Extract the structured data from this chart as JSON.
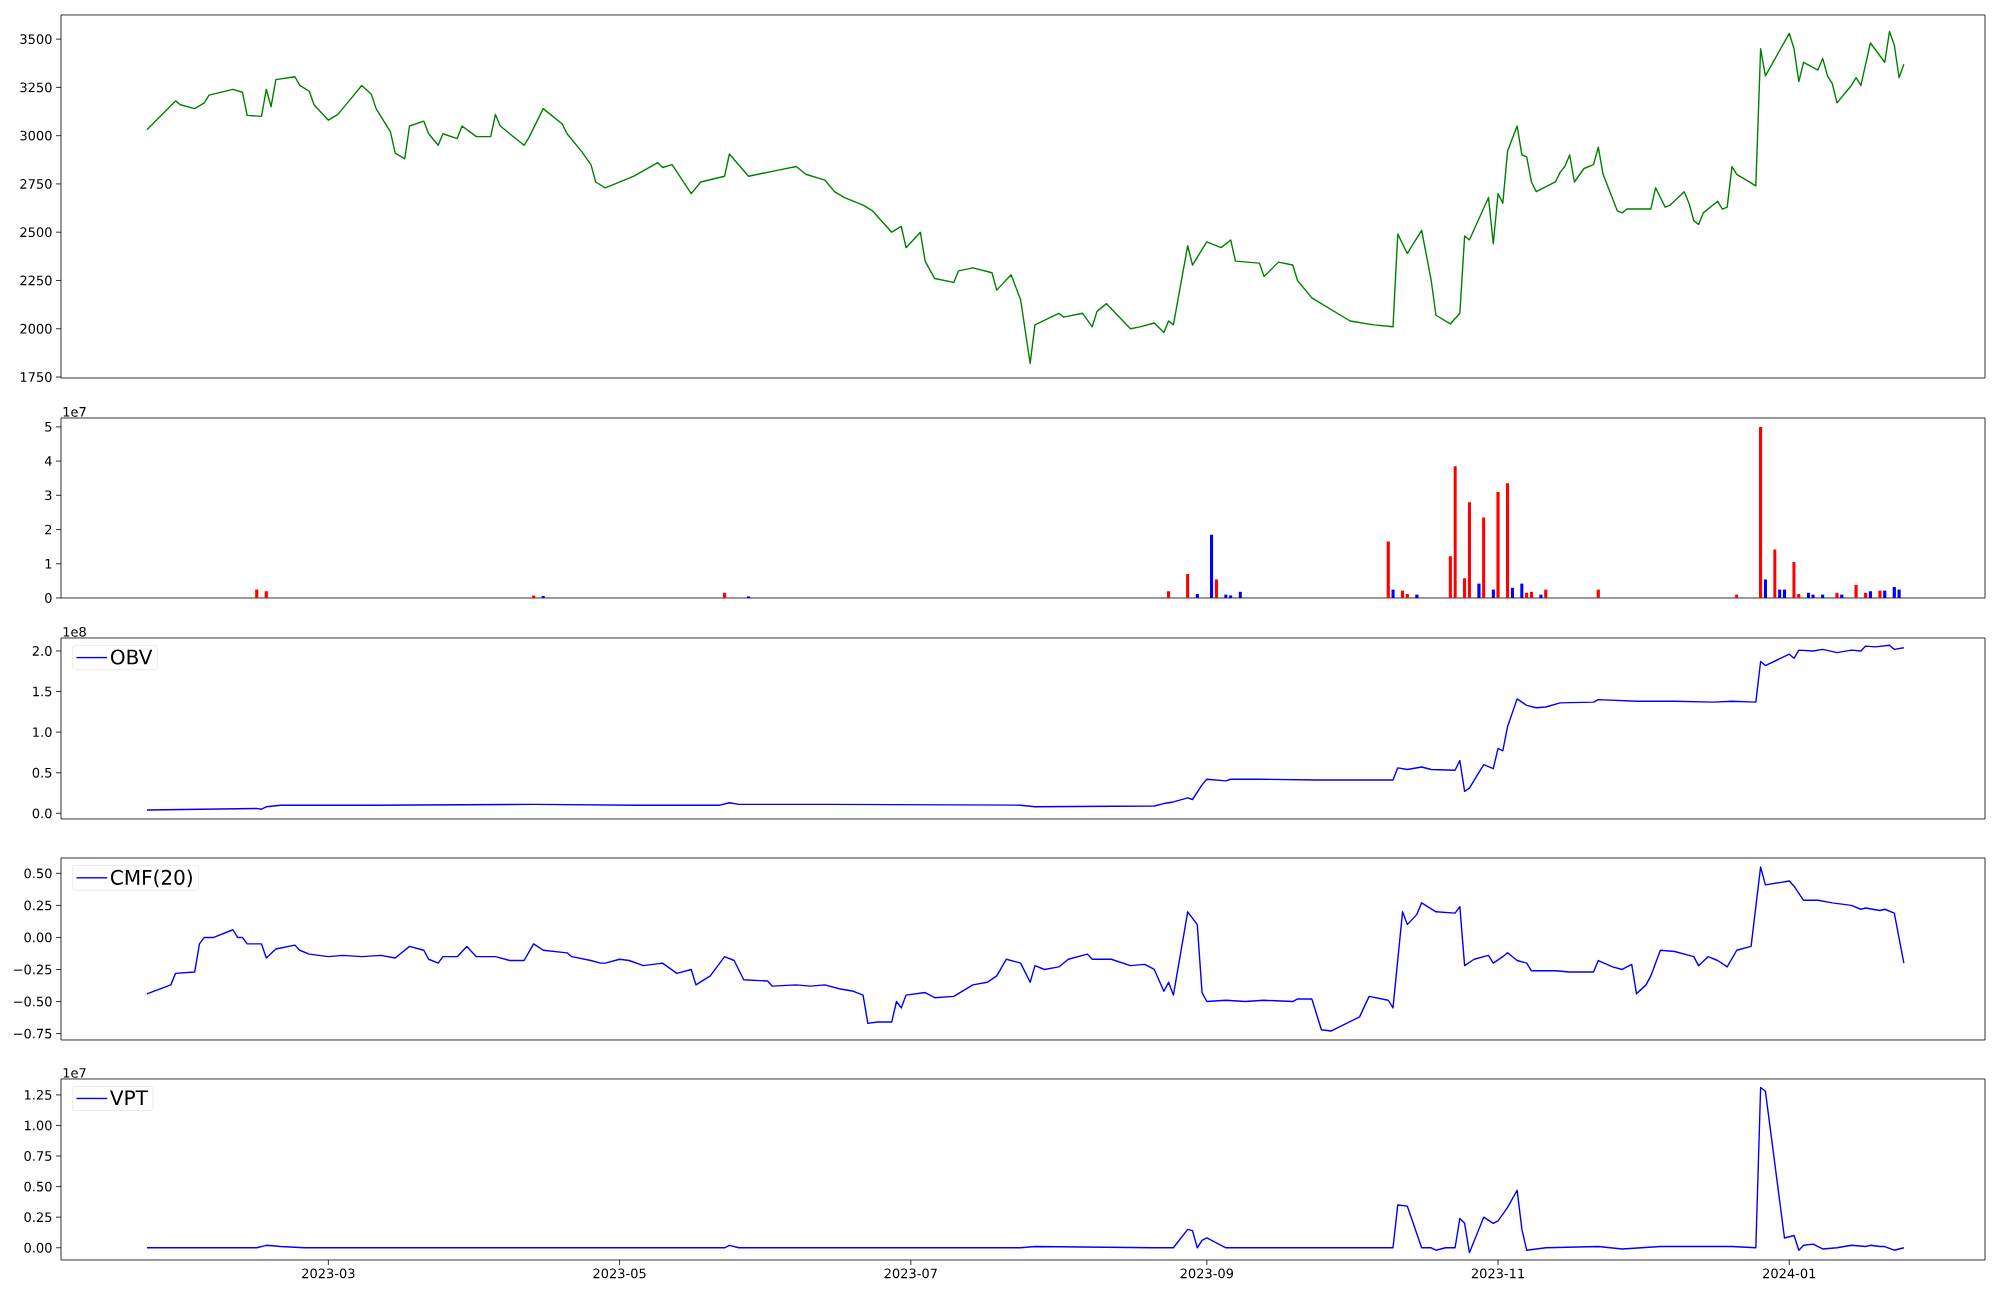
{
  "chart_data": [
    {
      "type": "line",
      "xlim": [
        "2023-01-04",
        "2024-02-11"
      ],
      "ylim": [
        1745,
        3625
      ],
      "yticks": [
        1750,
        2000,
        2250,
        2500,
        2750,
        3000,
        3250,
        3500
      ],
      "tick_labels": "y",
      "series": [
        {
          "color": "#008000",
          "x": [
            "2023-01-22",
            "2023-01-28",
            "2023-01-29",
            "2023-02-01",
            "2023-02-03",
            "2023-02-04",
            "2023-02-09",
            "2023-02-11",
            "2023-02-12",
            "2023-02-15",
            "2023-02-16",
            "2023-02-17",
            "2023-02-18",
            "2023-02-22",
            "2023-02-23",
            "2023-02-25",
            "2023-02-26",
            "2023-03-01",
            "2023-03-03",
            "2023-03-05",
            "2023-03-08",
            "2023-03-10",
            "2023-03-11",
            "2023-03-14",
            "2023-03-15",
            "2023-03-17",
            "2023-03-18",
            "2023-03-21",
            "2023-03-22",
            "2023-03-24",
            "2023-03-25",
            "2023-03-28",
            "2023-03-29",
            "2023-04-01",
            "2023-04-04",
            "2023-04-05",
            "2023-04-06",
            "2023-04-11",
            "2023-04-12",
            "2023-04-15",
            "2023-04-19",
            "2023-04-20",
            "2023-04-23",
            "2023-04-25",
            "2023-04-26",
            "2023-04-28",
            "2023-05-04",
            "2023-05-09",
            "2023-05-10",
            "2023-05-12",
            "2023-05-16",
            "2023-05-18",
            "2023-05-23",
            "2023-05-24",
            "2023-05-28",
            "2023-06-03",
            "2023-06-07",
            "2023-06-09",
            "2023-06-13",
            "2023-06-15",
            "2023-06-17",
            "2023-06-21",
            "2023-06-23",
            "2023-06-27",
            "2023-06-29",
            "2023-06-30",
            "2023-07-03",
            "2023-07-04",
            "2023-07-06",
            "2023-07-10",
            "2023-07-11",
            "2023-07-14",
            "2023-07-18",
            "2023-07-19",
            "2023-07-22",
            "2023-07-24",
            "2023-07-26",
            "2023-07-27",
            "2023-08-01",
            "2023-08-02",
            "2023-08-06",
            "2023-08-08",
            "2023-08-09",
            "2023-08-11",
            "2023-08-16",
            "2023-08-18",
            "2023-08-21",
            "2023-08-23",
            "2023-08-24",
            "2023-08-25",
            "2023-08-28",
            "2023-08-29",
            "2023-09-01",
            "2023-09-04",
            "2023-09-06",
            "2023-09-07",
            "2023-09-12",
            "2023-09-13",
            "2023-09-16",
            "2023-09-19",
            "2023-09-20",
            "2023-09-23",
            "2023-10-01",
            "2023-10-06",
            "2023-10-10",
            "2023-10-11",
            "2023-10-13",
            "2023-10-16",
            "2023-10-18",
            "2023-10-19",
            "2023-10-22",
            "2023-10-24",
            "2023-10-25",
            "2023-10-26",
            "2023-10-30",
            "2023-10-31",
            "2023-11-01",
            "2023-11-02",
            "2023-11-03",
            "2023-11-05",
            "2023-11-06",
            "2023-11-07",
            "2023-11-08",
            "2023-11-09",
            "2023-11-13",
            "2023-11-14",
            "2023-11-15",
            "2023-11-16",
            "2023-11-17",
            "2023-11-19",
            "2023-11-21",
            "2023-11-22",
            "2023-11-23",
            "2023-11-26",
            "2023-11-27",
            "2023-11-28",
            "2023-12-03",
            "2023-12-04",
            "2023-12-06",
            "2023-12-07",
            "2023-12-10",
            "2023-12-11",
            "2023-12-12",
            "2023-12-13",
            "2023-12-14",
            "2023-12-17",
            "2023-12-18",
            "2023-12-19",
            "2023-12-20",
            "2023-12-21",
            "2023-12-25",
            "2023-12-26",
            "2023-12-27",
            "2024-01-01",
            "2024-01-02",
            "2024-01-03",
            "2024-01-04",
            "2024-01-07",
            "2024-01-08",
            "2024-01-09",
            "2024-01-10",
            "2024-01-11",
            "2024-01-14",
            "2024-01-15",
            "2024-01-16",
            "2024-01-18",
            "2024-01-21",
            "2024-01-22",
            "2024-01-23",
            "2024-01-24",
            "2024-01-25"
          ],
          "values": [
            3030,
            3180,
            3160,
            3140,
            3170,
            3210,
            3240,
            3225,
            3105,
            3100,
            3240,
            3150,
            3290,
            3305,
            3260,
            3230,
            3160,
            3080,
            3110,
            3170,
            3260,
            3215,
            3140,
            3020,
            2910,
            2880,
            3050,
            3075,
            3010,
            2950,
            3010,
            2985,
            3050,
            2995,
            2995,
            3110,
            3050,
            2950,
            2990,
            3140,
            3060,
            3010,
            2920,
            2850,
            2760,
            2730,
            2790,
            2860,
            2835,
            2850,
            2700,
            2760,
            2790,
            2905,
            2790,
            2820,
            2840,
            2800,
            2770,
            2710,
            2680,
            2640,
            2610,
            2500,
            2530,
            2420,
            2500,
            2350,
            2260,
            2240,
            2300,
            2315,
            2290,
            2200,
            2280,
            2150,
            1820,
            2020,
            2080,
            2060,
            2080,
            2010,
            2090,
            2130,
            2000,
            2010,
            2030,
            1980,
            2040,
            2020,
            2430,
            2330,
            2450,
            2420,
            2460,
            2350,
            2340,
            2270,
            2345,
            2330,
            2250,
            2160,
            2040,
            2020,
            2010,
            2490,
            2390,
            2510,
            2250,
            2070,
            2025,
            2080,
            2480,
            2460,
            2680,
            2440,
            2700,
            2650,
            2920,
            3050,
            2900,
            2890,
            2760,
            2710,
            2760,
            2810,
            2840,
            2900,
            2760,
            2830,
            2850,
            2940,
            2800,
            2610,
            2600,
            2620,
            2620,
            2730,
            2630,
            2640,
            2710,
            2650,
            2560,
            2540,
            2600,
            2660,
            2620,
            2630,
            2840,
            2800,
            2740,
            3450,
            3310,
            3530,
            3450,
            3280,
            3380,
            3340,
            3400,
            3310,
            3270,
            3170,
            3260,
            3300,
            3260,
            3480,
            3380,
            3540,
            3470,
            3300,
            3370
          ]
        }
      ]
    },
    {
      "type": "bar",
      "xlim": [
        "2023-01-04",
        "2024-02-11"
      ],
      "ylim": [
        0,
        5.26
      ],
      "tick_labels": "y",
      "annotations": [
        "1e7"
      ],
      "yticks": [
        0,
        1,
        2,
        3,
        4,
        5
      ],
      "x": [
        "2023-02-14",
        "2023-02-16",
        "2023-04-13",
        "2023-04-15",
        "2023-05-23",
        "2023-05-28",
        "2023-08-24",
        "2023-08-28",
        "2023-08-30",
        "2023-09-02",
        "2023-09-03",
        "2023-09-05",
        "2023-09-06",
        "2023-09-08",
        "2023-10-09",
        "2023-10-10",
        "2023-10-12",
        "2023-10-13",
        "2023-10-15",
        "2023-10-22",
        "2023-10-23",
        "2023-10-25",
        "2023-10-26",
        "2023-10-28",
        "2023-10-29",
        "2023-10-31",
        "2023-11-01",
        "2023-11-03",
        "2023-11-04",
        "2023-11-06",
        "2023-11-07",
        "2023-11-08",
        "2023-11-10",
        "2023-11-11",
        "2023-11-22",
        "2023-12-21",
        "2023-12-26",
        "2023-12-27",
        "2023-12-29",
        "2023-12-30",
        "2023-12-31",
        "2024-01-02",
        "2024-01-03",
        "2024-01-05",
        "2024-01-06",
        "2024-01-08",
        "2024-01-11",
        "2024-01-12",
        "2024-01-15",
        "2024-01-17",
        "2024-01-18",
        "2024-01-20",
        "2024-01-21",
        "2024-01-23",
        "2024-01-24"
      ],
      "values": [
        0.25,
        0.2,
        0.07,
        0.06,
        0.15,
        0.05,
        0.2,
        0.7,
        0.12,
        1.85,
        0.55,
        0.1,
        0.08,
        0.18,
        1.65,
        0.25,
        0.22,
        0.12,
        0.1,
        1.22,
        3.85,
        0.58,
        2.8,
        0.42,
        2.35,
        0.25,
        3.1,
        3.35,
        0.3,
        0.42,
        0.15,
        0.18,
        0.1,
        0.25,
        0.25,
        0.1,
        5.0,
        0.55,
        1.42,
        0.25,
        0.25,
        1.05,
        0.12,
        0.15,
        0.1,
        0.1,
        0.15,
        0.1,
        0.38,
        0.15,
        0.2,
        0.22,
        0.22,
        0.32,
        0.25
      ],
      "colors": [
        "#ff0000",
        "#ff0000",
        "#ff0000",
        "#0000ff",
        "#ff0000",
        "#0000ff",
        "#ff0000",
        "#ff0000",
        "#0000ff",
        "#0000ff",
        "#ff0000",
        "#0000ff",
        "#0000ff",
        "#0000ff",
        "#ff0000",
        "#0000ff",
        "#ff0000",
        "#ff0000",
        "#0000ff",
        "#ff0000",
        "#ff0000",
        "#ff0000",
        "#ff0000",
        "#0000ff",
        "#ff0000",
        "#0000ff",
        "#ff0000",
        "#ff0000",
        "#0000ff",
        "#0000ff",
        "#ff0000",
        "#ff0000",
        "#0000ff",
        "#ff0000",
        "#ff0000",
        "#ff0000",
        "#ff0000",
        "#0000ff",
        "#ff0000",
        "#0000ff",
        "#0000ff",
        "#ff0000",
        "#ff0000",
        "#0000ff",
        "#0000ff",
        "#0000ff",
        "#ff0000",
        "#0000ff",
        "#ff0000",
        "#ff0000",
        "#0000ff",
        "#ff0000",
        "#0000ff",
        "#0000ff",
        "#0000ff"
      ]
    },
    {
      "type": "line",
      "xlim": [
        "2023-01-04",
        "2024-02-11"
      ],
      "ylim": [
        -0.07,
        2.16
      ],
      "tick_labels": "y",
      "legend": "top left",
      "annotations": [
        "1e8"
      ],
      "yticks": [
        {
          "value": 0,
          "label": "0.0"
        },
        {
          "value": 0.5,
          "label": "0.5"
        },
        {
          "value": 1.0,
          "label": "1.0"
        },
        {
          "value": 1.5,
          "label": "1.5"
        },
        {
          "value": 2.0,
          "label": "2.0"
        }
      ],
      "series": [
        {
          "name": "OBV",
          "color": "#0000ff",
          "x": [
            "2023-01-22",
            "2023-02-14",
            "2023-02-15",
            "2023-02-16",
            "2023-02-19",
            "2023-03-10",
            "2023-04-13",
            "2023-05-05",
            "2023-05-22",
            "2023-05-24",
            "2023-05-26",
            "2023-06-14",
            "2023-07-24",
            "2023-07-27",
            "2023-08-21",
            "2023-08-23",
            "2023-08-25",
            "2023-08-28",
            "2023-08-29",
            "2023-08-31",
            "2023-09-01",
            "2023-09-05",
            "2023-09-06",
            "2023-09-12",
            "2023-09-24",
            "2023-10-10",
            "2023-10-11",
            "2023-10-13",
            "2023-10-16",
            "2023-10-18",
            "2023-10-23",
            "2023-10-24",
            "2023-10-25",
            "2023-10-26",
            "2023-10-29",
            "2023-10-31",
            "2023-11-01",
            "2023-11-02",
            "2023-11-03",
            "2023-11-05",
            "2023-11-06",
            "2023-11-07",
            "2023-11-09",
            "2023-11-11",
            "2023-11-14",
            "2023-11-21",
            "2023-11-22",
            "2023-11-30",
            "2023-12-08",
            "2023-12-16",
            "2023-12-20",
            "2023-12-25",
            "2023-12-26",
            "2023-12-27",
            "2024-01-01",
            "2024-01-02",
            "2024-01-03",
            "2024-01-06",
            "2024-01-08",
            "2024-01-11",
            "2024-01-14",
            "2024-01-16",
            "2024-01-17",
            "2024-01-19",
            "2024-01-22",
            "2024-01-23",
            "2024-01-25"
          ],
          "values": [
            0.04,
            0.06,
            0.05,
            0.08,
            0.1,
            0.1,
            0.11,
            0.1,
            0.1,
            0.13,
            0.11,
            0.11,
            0.1,
            0.08,
            0.09,
            0.12,
            0.14,
            0.19,
            0.17,
            0.35,
            0.42,
            0.4,
            0.42,
            0.42,
            0.41,
            0.41,
            0.56,
            0.54,
            0.57,
            0.54,
            0.53,
            0.65,
            0.27,
            0.31,
            0.6,
            0.55,
            0.8,
            0.77,
            1.07,
            1.41,
            1.37,
            1.33,
            1.3,
            1.31,
            1.36,
            1.37,
            1.4,
            1.38,
            1.38,
            1.37,
            1.38,
            1.37,
            1.87,
            1.82,
            1.96,
            1.91,
            2.01,
            2.0,
            2.02,
            1.98,
            2.01,
            2.0,
            2.06,
            2.05,
            2.07,
            2.02,
            2.04
          ]
        }
      ]
    },
    {
      "type": "line",
      "xlim": [
        "2023-01-04",
        "2024-02-11"
      ],
      "ylim": [
        -0.8,
        0.62
      ],
      "tick_labels": "y",
      "legend": "top left",
      "yticks": [
        {
          "value": -0.75,
          "label": "−0.75"
        },
        {
          "value": -0.5,
          "label": "−0.50"
        },
        {
          "value": -0.25,
          "label": "−0.25"
        },
        {
          "value": 0,
          "label": "0.00"
        },
        {
          "value": 0.25,
          "label": "0.25"
        },
        {
          "value": 0.5,
          "label": "0.50"
        }
      ],
      "series": [
        {
          "name": "CMF(20)",
          "color": "#0000ff",
          "x": [
            "2023-01-22",
            "2023-01-27",
            "2023-01-28",
            "2023-02-01",
            "2023-02-02",
            "2023-02-03",
            "2023-02-05",
            "2023-02-09",
            "2023-02-10",
            "2023-02-11",
            "2023-02-12",
            "2023-02-15",
            "2023-02-16",
            "2023-02-18",
            "2023-02-22",
            "2023-02-23",
            "2023-02-25",
            "2023-03-01",
            "2023-03-04",
            "2023-03-08",
            "2023-03-12",
            "2023-03-15",
            "2023-03-18",
            "2023-03-21",
            "2023-03-22",
            "2023-03-24",
            "2023-03-25",
            "2023-03-28",
            "2023-03-30",
            "2023-04-01",
            "2023-04-05",
            "2023-04-08",
            "2023-04-11",
            "2023-04-13",
            "2023-04-15",
            "2023-04-20",
            "2023-04-21",
            "2023-04-25",
            "2023-04-27",
            "2023-04-28",
            "2023-05-01",
            "2023-05-03",
            "2023-05-06",
            "2023-05-10",
            "2023-05-13",
            "2023-05-16",
            "2023-05-17",
            "2023-05-20",
            "2023-05-23",
            "2023-05-25",
            "2023-05-27",
            "2023-06-01",
            "2023-06-02",
            "2023-06-07",
            "2023-06-10",
            "2023-06-13",
            "2023-06-16",
            "2023-06-19",
            "2023-06-21",
            "2023-06-22",
            "2023-06-24",
            "2023-06-27",
            "2023-06-28",
            "2023-06-29",
            "2023-06-30",
            "2023-07-04",
            "2023-07-06",
            "2023-07-10",
            "2023-07-14",
            "2023-07-17",
            "2023-07-19",
            "2023-07-21",
            "2023-07-24",
            "2023-07-26",
            "2023-07-27",
            "2023-07-29",
            "2023-08-01",
            "2023-08-03",
            "2023-08-07",
            "2023-08-08",
            "2023-08-12",
            "2023-08-16",
            "2023-08-19",
            "2023-08-21",
            "2023-08-23",
            "2023-08-24",
            "2023-08-25",
            "2023-08-28",
            "2023-08-30",
            "2023-08-31",
            "2023-09-01",
            "2023-09-05",
            "2023-09-09",
            "2023-09-13",
            "2023-09-19",
            "2023-09-20",
            "2023-09-23",
            "2023-09-25",
            "2023-09-27",
            "2023-10-03",
            "2023-10-05",
            "2023-10-09",
            "2023-10-10",
            "2023-10-12",
            "2023-10-13",
            "2023-10-15",
            "2023-10-16",
            "2023-10-19",
            "2023-10-23",
            "2023-10-24",
            "2023-10-25",
            "2023-10-27",
            "2023-10-30",
            "2023-10-31",
            "2023-11-02",
            "2023-11-03",
            "2023-11-05",
            "2023-11-07",
            "2023-11-08",
            "2023-11-13",
            "2023-11-16",
            "2023-11-21",
            "2023-11-22",
            "2023-11-25",
            "2023-11-27",
            "2023-11-29",
            "2023-11-30",
            "2023-12-02",
            "2023-12-03",
            "2023-12-05",
            "2023-12-08",
            "2023-12-11",
            "2023-12-12",
            "2023-12-13",
            "2023-12-15",
            "2023-12-17",
            "2023-12-19",
            "2023-12-21",
            "2023-12-24",
            "2023-12-26",
            "2023-12-27",
            "2024-01-01",
            "2024-01-02",
            "2024-01-04",
            "2024-01-07",
            "2024-01-10",
            "2024-01-14",
            "2024-01-16",
            "2024-01-17",
            "2024-01-20",
            "2024-01-21",
            "2024-01-23",
            "2024-01-25"
          ],
          "values": [
            -0.44,
            -0.37,
            -0.28,
            -0.27,
            -0.05,
            0.0,
            0.0,
            0.06,
            0.0,
            0.0,
            -0.05,
            -0.05,
            -0.16,
            -0.09,
            -0.06,
            -0.1,
            -0.13,
            -0.15,
            -0.14,
            -0.15,
            -0.14,
            -0.16,
            -0.07,
            -0.1,
            -0.17,
            -0.2,
            -0.15,
            -0.15,
            -0.07,
            -0.15,
            -0.15,
            -0.18,
            -0.18,
            -0.05,
            -0.1,
            -0.12,
            -0.15,
            -0.18,
            -0.2,
            -0.2,
            -0.17,
            -0.18,
            -0.22,
            -0.2,
            -0.28,
            -0.25,
            -0.37,
            -0.3,
            -0.15,
            -0.18,
            -0.33,
            -0.34,
            -0.38,
            -0.37,
            -0.38,
            -0.37,
            -0.4,
            -0.42,
            -0.45,
            -0.67,
            -0.66,
            -0.66,
            -0.5,
            -0.55,
            -0.45,
            -0.43,
            -0.47,
            -0.46,
            -0.37,
            -0.35,
            -0.3,
            -0.17,
            -0.2,
            -0.35,
            -0.22,
            -0.25,
            -0.23,
            -0.17,
            -0.13,
            -0.17,
            -0.17,
            -0.22,
            -0.21,
            -0.25,
            -0.42,
            -0.35,
            -0.45,
            0.2,
            0.1,
            -0.43,
            -0.5,
            -0.49,
            -0.5,
            -0.49,
            -0.5,
            -0.48,
            -0.48,
            -0.72,
            -0.73,
            -0.62,
            -0.46,
            -0.49,
            -0.55,
            0.2,
            0.1,
            0.18,
            0.27,
            0.2,
            0.19,
            0.24,
            -0.22,
            -0.17,
            -0.14,
            -0.2,
            -0.15,
            -0.12,
            -0.18,
            -0.2,
            -0.26,
            -0.26,
            -0.27,
            -0.27,
            -0.18,
            -0.23,
            -0.25,
            -0.21,
            -0.44,
            -0.37,
            -0.3,
            -0.1,
            -0.11,
            -0.14,
            -0.15,
            -0.22,
            -0.15,
            -0.18,
            -0.23,
            -0.1,
            -0.07,
            0.55,
            0.41,
            0.44,
            0.4,
            0.29,
            0.29,
            0.27,
            0.25,
            0.22,
            0.23,
            0.21,
            0.22,
            0.19,
            -0.2
          ]
        }
      ]
    },
    {
      "type": "line",
      "xlim": [
        "2023-01-04",
        "2024-02-11"
      ],
      "ylim": [
        -0.1,
        1.38
      ],
      "legend": "top left",
      "annotations": [
        "1e7"
      ],
      "xticks": [
        {
          "value": "2023-03",
          "label": "2023-03"
        },
        {
          "value": "2023-05",
          "label": "2023-05"
        },
        {
          "value": "2023-07",
          "label": "2023-07"
        },
        {
          "value": "2023-09",
          "label": "2023-09"
        },
        {
          "value": "2023-11",
          "label": "2023-11"
        },
        {
          "value": "2024-01",
          "label": "2024-01"
        }
      ],
      "yticks": [
        {
          "value": 0,
          "label": "0.00"
        },
        {
          "value": 0.25,
          "label": "0.25"
        },
        {
          "value": 0.5,
          "label": "0.50"
        },
        {
          "value": 0.75,
          "label": "0.75"
        },
        {
          "value": 1.0,
          "label": "1.00"
        },
        {
          "value": 1.25,
          "label": "1.25"
        }
      ],
      "series": [
        {
          "name": "VPT",
          "color": "#0000ff",
          "x": [
            "2023-01-22",
            "2023-02-14",
            "2023-02-16",
            "2023-02-19",
            "2023-02-24",
            "2023-05-23",
            "2023-05-24",
            "2023-05-26",
            "2023-07-24",
            "2023-07-27",
            "2023-08-21",
            "2023-08-25",
            "2023-08-28",
            "2023-08-29",
            "2023-08-30",
            "2023-08-31",
            "2023-09-01",
            "2023-09-05",
            "2023-09-16",
            "2023-10-10",
            "2023-10-11",
            "2023-10-13",
            "2023-10-16",
            "2023-10-18",
            "2023-10-19",
            "2023-10-21",
            "2023-10-23",
            "2023-10-24",
            "2023-10-25",
            "2023-10-26",
            "2023-10-29",
            "2023-10-31",
            "2023-11-01",
            "2023-11-03",
            "2023-11-05",
            "2023-11-06",
            "2023-11-07",
            "2023-11-11",
            "2023-11-22",
            "2023-11-27",
            "2023-12-05",
            "2023-12-20",
            "2023-12-25",
            "2023-12-26",
            "2023-12-27",
            "2023-12-31",
            "2024-01-02",
            "2024-01-03",
            "2024-01-04",
            "2024-01-06",
            "2024-01-08",
            "2024-01-11",
            "2024-01-14",
            "2024-01-17",
            "2024-01-18",
            "2024-01-20",
            "2024-01-21",
            "2024-01-23",
            "2024-01-25"
          ],
          "values": [
            0,
            0,
            0.02,
            0.01,
            0,
            0,
            0.02,
            0,
            0,
            0.01,
            0,
            0,
            0.15,
            0.14,
            0,
            0.06,
            0.08,
            0,
            0,
            0,
            0.35,
            0.34,
            0,
            0,
            -0.02,
            0,
            0,
            0.24,
            0.2,
            -0.04,
            0.25,
            0.2,
            0.22,
            0.33,
            0.47,
            0.15,
            -0.02,
            0,
            0.01,
            -0.01,
            0.01,
            0.01,
            0,
            1.31,
            1.28,
            0.08,
            0.1,
            -0.02,
            0.02,
            0.03,
            -0.01,
            0,
            0.02,
            0.01,
            0.02,
            0.01,
            0.01,
            -0.02,
            0
          ]
        }
      ]
    }
  ]
}
